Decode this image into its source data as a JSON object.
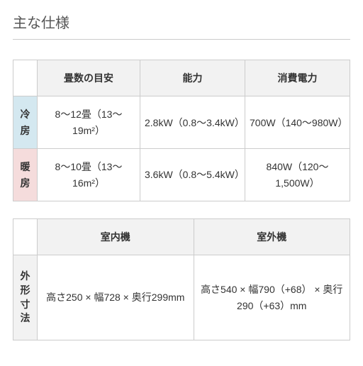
{
  "title": "主な仕様",
  "table1": {
    "headers": {
      "col2": "畳数の目安",
      "col3": "能力",
      "col4": "消費電力"
    },
    "rows": [
      {
        "label": "冷房",
        "label_bg": "#d4e8f0",
        "tatami": "8〜12畳（13〜19m²）",
        "capacity": "2.8kW（0.8〜3.4kW）",
        "power": "700W（140〜980W）"
      },
      {
        "label": "暖房",
        "label_bg": "#f5dcdc",
        "tatami": "8〜10畳（13〜16m²）",
        "capacity": "3.6kW（0.8〜5.4kW）",
        "power": "840W（120〜1,500W）"
      }
    ]
  },
  "table2": {
    "headers": {
      "col2": "室内機",
      "col3": "室外機"
    },
    "row": {
      "label": "外形寸法",
      "indoor": "高さ250 × 幅728 × 奥行299mm",
      "outdoor": "高さ540 × 幅790（+68） × 奥行290（+63）mm"
    }
  },
  "colors": {
    "header_bg": "#f2f2f2",
    "border": "#cccccc",
    "text": "#333333",
    "cooling_bg": "#d4e8f0",
    "heating_bg": "#f5dcdc"
  }
}
